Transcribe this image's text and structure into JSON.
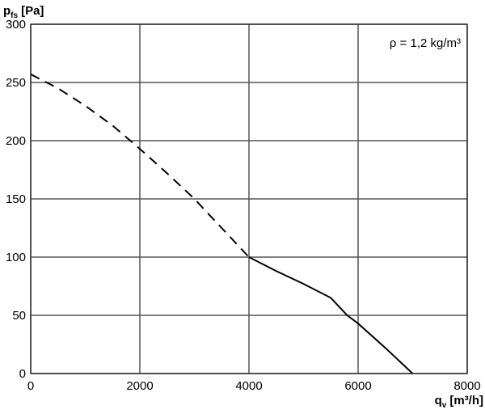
{
  "chart_data": {
    "type": "line",
    "ylabel": {
      "symbol": "p",
      "subscript": "fs",
      "unit": "[Pa]"
    },
    "xlabel": {
      "symbol": "q",
      "subscript": "v",
      "unit": "[m³/h]"
    },
    "annotation": "ρ = 1,2 kg/m³",
    "xlim": [
      0,
      8000
    ],
    "xticks": [
      0,
      2000,
      4000,
      6000,
      8000
    ],
    "ylim": [
      0,
      300
    ],
    "yticks": [
      0,
      50,
      100,
      150,
      200,
      250,
      300
    ],
    "grid": true,
    "color": "#000000",
    "series": [
      {
        "style": "dashed",
        "x": [
          0,
          500,
          1000,
          1500,
          2000,
          2500,
          3000,
          3500,
          4000
        ],
        "values": [
          257,
          245,
          230,
          213,
          193,
          172,
          150,
          125,
          100
        ]
      },
      {
        "style": "solid",
        "x": [
          4000,
          4500,
          5000,
          5500,
          5800,
          6000,
          6500,
          7000
        ],
        "values": [
          100,
          88,
          77,
          65,
          50,
          43,
          22,
          0
        ]
      }
    ]
  }
}
